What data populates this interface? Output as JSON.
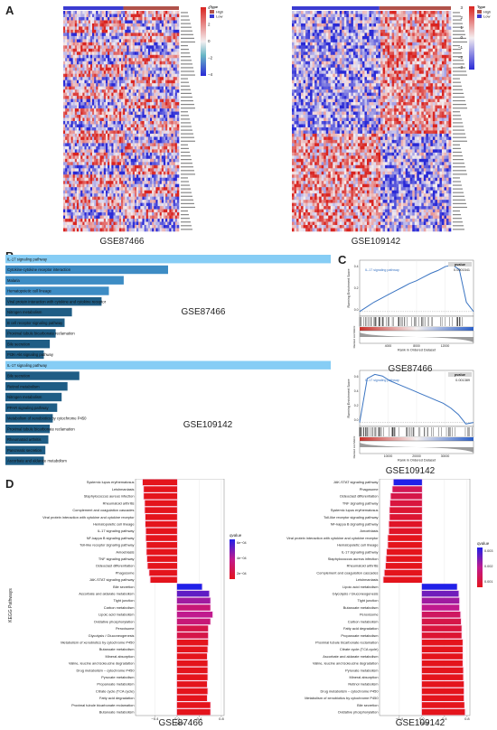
{
  "panels": {
    "a": "A",
    "b": "B",
    "c": "C",
    "d": "D"
  },
  "heatmap_a": {
    "left_title": "GSE87466",
    "right_title": "GSE109142",
    "legend_type_title": "Type",
    "legend_high": "High",
    "legend_low": "Low",
    "left_scale_ticks": [
      "4",
      "2",
      "0",
      "−2",
      "−4"
    ],
    "right_scale_ticks": [
      "3",
      "2",
      "1",
      "0",
      "−1",
      "−2",
      "−3"
    ],
    "colors": {
      "high": "#b0524a",
      "low": "#3b3bd1",
      "hot": "#d9231f",
      "cold": "#2929d6",
      "mid": "#f4eef0"
    }
  },
  "panel_b": {
    "dataset_1": "GSE87466",
    "dataset_2": "GSE109142",
    "bar_colors": {
      "light": "#86cdf5",
      "mid": "#3d8cc4",
      "dark": "#1f5d85"
    },
    "chart_data": {
      "type": "bar",
      "series": [
        {
          "name": "GSE87466",
          "categories": [
            "IL-17 signaling pathway",
            "Cytokine-cytokine receptor interaction",
            "Malaria",
            "Hematopoietic cell lineage",
            "Viral protein interaction with cytokine and cytokine receptor",
            "Nitrogen metabolism",
            "B cell receptor signaling pathway",
            "Proximal tubule bicarbonate reclamation",
            "Bile secretion",
            "PI3K-Akt signaling pathway"
          ],
          "values": [
            22,
            11,
            8,
            7,
            6.5,
            4.5,
            4,
            3.4,
            3,
            2.6
          ]
        },
        {
          "name": "GSE109142",
          "categories": [
            "IL-17 signaling pathway",
            "Bile secretion",
            "Retinol metabolism",
            "Nitrogen metabolism",
            "PPAR signaling pathway",
            "Metabolism of xenobiotics by cytochrome P450",
            "Proximal tubule bicarbonate reclamation",
            "Rheumatoid arthritis",
            "Pancreatic secretion",
            "Ascorbate and aldarate metabolism"
          ],
          "values": [
            22,
            5,
            4.2,
            3.8,
            3.5,
            3.2,
            3,
            2.9,
            2.7,
            2.6
          ]
        }
      ]
    }
  },
  "panel_c": {
    "chart_data": [
      {
        "type": "line",
        "dataset": "GSE87466",
        "gene_set": "IL-17 signaling pathway",
        "pvalue_header": "pvalue",
        "pvalue": "0.0001541",
        "ylabel": "Running Enrichment Score",
        "ylabel2": "Ranked List Metric",
        "xlabel": "Rank in Ordered Dataset",
        "x_ticks": [
          "4000",
          "8000",
          "12000"
        ],
        "y_ticks": [
          "0.4",
          "0.2",
          "0.0"
        ],
        "x": [
          0,
          1000,
          2000,
          3000,
          4000,
          5000,
          6000,
          7000,
          8000,
          9000,
          10000,
          11000,
          12000,
          13000,
          14000,
          15000,
          16000
        ],
        "values": [
          0.0,
          0.05,
          0.1,
          0.14,
          0.18,
          0.22,
          0.26,
          0.3,
          0.33,
          0.37,
          0.41,
          0.44,
          0.48,
          0.5,
          0.45,
          0.1,
          0.0
        ]
      },
      {
        "type": "line",
        "dataset": "GSE109142",
        "gene_set": "IL-17 signaling pathway",
        "pvalue_header": "pvalue",
        "pvalue": "0.001389",
        "ylabel": "Running Enrichment Score",
        "ylabel2": "Ranked List Metric",
        "xlabel": "Rank in Ordered Dataset",
        "x_ticks": [
          "10000",
          "20000",
          "30000"
        ],
        "y_ticks": [
          "0.6",
          "0.4",
          "0.2",
          "0.0"
        ],
        "x": [
          0,
          2000,
          4000,
          6000,
          8000,
          10000,
          12000,
          14000,
          16000,
          18000,
          20000,
          22000,
          24000,
          26000,
          28000,
          30000
        ],
        "values": [
          0.0,
          0.55,
          0.6,
          0.58,
          0.52,
          0.48,
          0.44,
          0.4,
          0.36,
          0.32,
          0.28,
          0.24,
          0.18,
          0.1,
          -0.02,
          0.0
        ]
      }
    ]
  },
  "panel_d": {
    "ylabel": "KEGG Pathways",
    "xlabel": "NES",
    "legend_title": "qvalue",
    "left_title": "GSE87466",
    "right_title": "GSE109142",
    "left_legend_ticks": [
      "6e−04",
      "4e−04",
      "2e−04"
    ],
    "right_legend_ticks": [
      "0.003",
      "0.002",
      "0.001"
    ],
    "left_x_ticks": [
      "−0.4",
      "0.0",
      "0.4",
      "0.8"
    ],
    "right_x_ticks": [
      "−0.4",
      "0.0",
      "0.4",
      "0.8"
    ],
    "colors": {
      "low_q": "#e4141c",
      "mid_q": "#c01a8e",
      "high_q": "#2020e8"
    },
    "chart_data": [
      {
        "type": "bar",
        "dataset": "GSE87466",
        "xlim": [
          -0.75,
          0.85
        ],
        "categories": [
          "Systemic lupus erythematosus",
          "Leishmaniasis",
          "Staphylococcus aureus infection",
          "Rheumatoid arthritis",
          "Complement and coagulation cascades",
          "Viral protein interaction with cytokine and cytokine receptor",
          "Hematopoietic cell lineage",
          "IL-17 signaling pathway",
          "NF-kappa B signaling pathway",
          "Toll-like receptor signaling pathway",
          "Amoebiasis",
          "TNF signaling pathway",
          "Osteoclast differentiation",
          "Phagosome",
          "JAK-STAT signaling pathway",
          "Bile secretion",
          "Ascorbate and aldarate metabolism",
          "Tight junction",
          "Carbon metabolism",
          "Lipoic acid metabolism",
          "Oxidative phosphorylation",
          "Peroxisome",
          "Glycolysis / Gluconeogenesis",
          "Metabolism of xenobiotics by cytochrome P450",
          "Butanoate metabolism",
          "Mineral absorption",
          "Valine, leucine and isoleucine degradation",
          "Drug metabolism – cytochrome P450",
          "Pyruvate metabolism",
          "Propanoate metabolism",
          "Citrate cycle (TCA cycle)",
          "Fatty acid degradation",
          "Proximal tubule bicarbonate reclamation",
          "Butanoate metabolism"
        ],
        "values": [
          -0.62,
          -0.6,
          -0.6,
          -0.58,
          -0.58,
          -0.57,
          -0.57,
          -0.56,
          -0.56,
          -0.55,
          -0.55,
          -0.54,
          -0.53,
          -0.5,
          -0.48,
          0.45,
          0.58,
          0.6,
          0.6,
          0.64,
          0.6,
          0.56,
          0.56,
          0.56,
          0.55,
          0.54,
          0.55,
          0.55,
          0.55,
          0.54,
          0.55,
          0.54,
          0.6,
          0.6
        ],
        "qvalues": [
          0.0002,
          0.0002,
          0.0002,
          0.0002,
          0.0002,
          0.0002,
          0.0002,
          0.0002,
          0.0002,
          0.0002,
          0.0002,
          0.0002,
          0.0002,
          0.0002,
          0.0002,
          0.0007,
          0.0006,
          0.0005,
          0.0004,
          0.00045,
          0.0004,
          0.0003,
          0.0003,
          0.0002,
          0.0002,
          0.0002,
          0.0002,
          0.0002,
          0.0002,
          0.0002,
          0.0002,
          0.0002,
          0.0002,
          0.0002
        ]
      },
      {
        "type": "bar",
        "dataset": "GSE109142",
        "xlim": [
          -0.75,
          0.85
        ],
        "categories": [
          "JAK-STAT signaling pathway",
          "Phagosome",
          "Osteoclast differentiation",
          "TNF signaling pathway",
          "Systemic lupus erythematosus",
          "Toll-like receptor signaling pathway",
          "NF-kappa B signaling pathway",
          "Amoebiasis",
          "Viral protein interaction with cytokine and cytokine receptor",
          "Hematopoietic cell lineage",
          "IL-17 signaling pathway",
          "Staphylococcus aureus infection",
          "Rheumatoid arthritis",
          "Complement and coagulation cascades",
          "Leishmaniasis",
          "Lipoic acid metabolism",
          "Glycolysis / Gluconeogenesis",
          "Tight junction",
          "Butanoate metabolism",
          "Peroxisome",
          "Carbon metabolism",
          "Fatty acid degradation",
          "Propanoate metabolism",
          "Proximal tubule bicarbonate reclamation",
          "Citrate cycle (TCA cycle)",
          "Ascorbate and aldarate metabolism",
          "Valine, leucine and isoleucine degradation",
          "Pyruvate metabolism",
          "Mineral absorption",
          "Retinol metabolism",
          "Drug metabolism – cytochrome P450",
          "Metabolism of xenobiotics by cytochrome P450",
          "Bile secretion",
          "Oxidative phosphorylation"
        ],
        "values": [
          -0.5,
          -0.52,
          -0.55,
          -0.56,
          -0.57,
          -0.57,
          -0.58,
          -0.58,
          -0.6,
          -0.6,
          -0.62,
          -0.63,
          -0.64,
          -0.66,
          -0.68,
          0.62,
          0.65,
          0.66,
          0.66,
          0.68,
          0.69,
          0.7,
          0.7,
          0.72,
          0.72,
          0.72,
          0.72,
          0.73,
          0.73,
          0.74,
          0.74,
          0.74,
          0.75,
          0.76
        ],
        "qvalues": [
          0.003,
          0.0015,
          0.0014,
          0.0013,
          0.0012,
          0.0012,
          0.0011,
          0.0011,
          0.001,
          0.001,
          0.001,
          0.001,
          0.001,
          0.001,
          0.001,
          0.003,
          0.0025,
          0.0022,
          0.002,
          0.0016,
          0.0014,
          0.0013,
          0.0012,
          0.001,
          0.001,
          0.001,
          0.001,
          0.001,
          0.001,
          0.001,
          0.001,
          0.001,
          0.001,
          0.001
        ]
      }
    ]
  }
}
